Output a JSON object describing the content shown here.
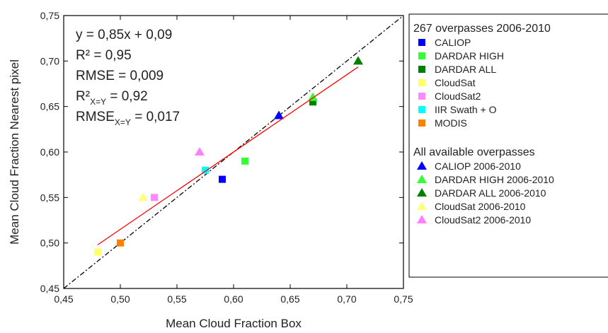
{
  "chart_data": {
    "type": "scatter",
    "x_label": "Mean Cloud Fraction Box",
    "y_label": "Mean Cloud Fraction Nearest pixel",
    "xlim": [
      0.45,
      0.75
    ],
    "ylim": [
      0.45,
      0.75
    ],
    "xticks": [
      {
        "value": 0.45,
        "label": "0,45"
      },
      {
        "value": 0.5,
        "label": "0,50"
      },
      {
        "value": 0.55,
        "label": "0,55"
      },
      {
        "value": 0.6,
        "label": "0,60"
      },
      {
        "value": 0.65,
        "label": "0,65"
      },
      {
        "value": 0.7,
        "label": "0,70"
      },
      {
        "value": 0.75,
        "label": "0,75"
      }
    ],
    "yticks": [
      {
        "value": 0.45,
        "label": "0,45"
      },
      {
        "value": 0.5,
        "label": "0,50"
      },
      {
        "value": 0.55,
        "label": "0,55"
      },
      {
        "value": 0.6,
        "label": "0,60"
      },
      {
        "value": 0.65,
        "label": "0,65"
      },
      {
        "value": 0.7,
        "label": "0,70"
      },
      {
        "value": 0.75,
        "label": "0,75"
      }
    ],
    "legend_titles": [
      "267 overpasses 2006-2010",
      "All available overpasses"
    ],
    "series": [
      {
        "name": "CALIOP",
        "color": "#0000ff",
        "marker": "square",
        "x": [
          0.59
        ],
        "values": [
          0.57
        ]
      },
      {
        "name": "DARDAR HIGH",
        "color": "#33ff33",
        "marker": "square",
        "x": [
          0.61
        ],
        "values": [
          0.59
        ]
      },
      {
        "name": "DARDAR ALL",
        "color": "#008000",
        "marker": "square",
        "x": [
          0.67
        ],
        "values": [
          0.655
        ]
      },
      {
        "name": "CloudSat",
        "color": "#ffff66",
        "marker": "square",
        "x": [
          0.48
        ],
        "values": [
          0.49
        ]
      },
      {
        "name": "CloudSat2",
        "color": "#ff88ff",
        "marker": "square",
        "x": [
          0.53
        ],
        "values": [
          0.55
        ]
      },
      {
        "name": "IIR Swath + O",
        "color": "#00ffff",
        "marker": "square",
        "x": [
          0.575
        ],
        "values": [
          0.58
        ]
      },
      {
        "name": "MODIS",
        "color": "#ff8000",
        "marker": "square",
        "x": [
          0.5
        ],
        "values": [
          0.5
        ]
      },
      {
        "name": "CALIOP 2006-2010",
        "color": "#0000ff",
        "marker": "triangle",
        "x": [
          0.64
        ],
        "values": [
          0.64
        ]
      },
      {
        "name": "DARDAR HIGH 2006-2010",
        "color": "#33ff33",
        "marker": "triangle",
        "x": [
          0.67
        ],
        "values": [
          0.66
        ]
      },
      {
        "name": "DARDAR ALL 2006-2010",
        "color": "#008000",
        "marker": "triangle",
        "x": [
          0.71
        ],
        "values": [
          0.7
        ]
      },
      {
        "name": "CloudSat 2006-2010",
        "color": "#ffff80",
        "marker": "triangle",
        "x": [
          0.52
        ],
        "values": [
          0.55
        ]
      },
      {
        "name": "CloudSat2 2006-2010",
        "color": "#ff80ff",
        "marker": "triangle",
        "x": [
          0.57
        ],
        "values": [
          0.6
        ]
      }
    ],
    "fit_line": {
      "color": "#ff0000",
      "x": [
        0.48,
        0.71
      ],
      "values": [
        0.498,
        0.6935
      ]
    },
    "identity_line": {
      "color": "#000000",
      "x": [
        0.45,
        0.75
      ],
      "values": [
        0.45,
        0.75
      ]
    },
    "annotation_color": "#ff2020",
    "annotations": [
      {
        "text": "y = 0,85x + 0,09"
      },
      {
        "text": "R² = 0,95"
      },
      {
        "text": "RMSE = 0,009"
      },
      {
        "text": "R²",
        "sub": "X=Y",
        "rest": " = 0,92"
      },
      {
        "text": "RMSE",
        "sub": "X=Y",
        "rest": " = 0,017"
      }
    ]
  }
}
